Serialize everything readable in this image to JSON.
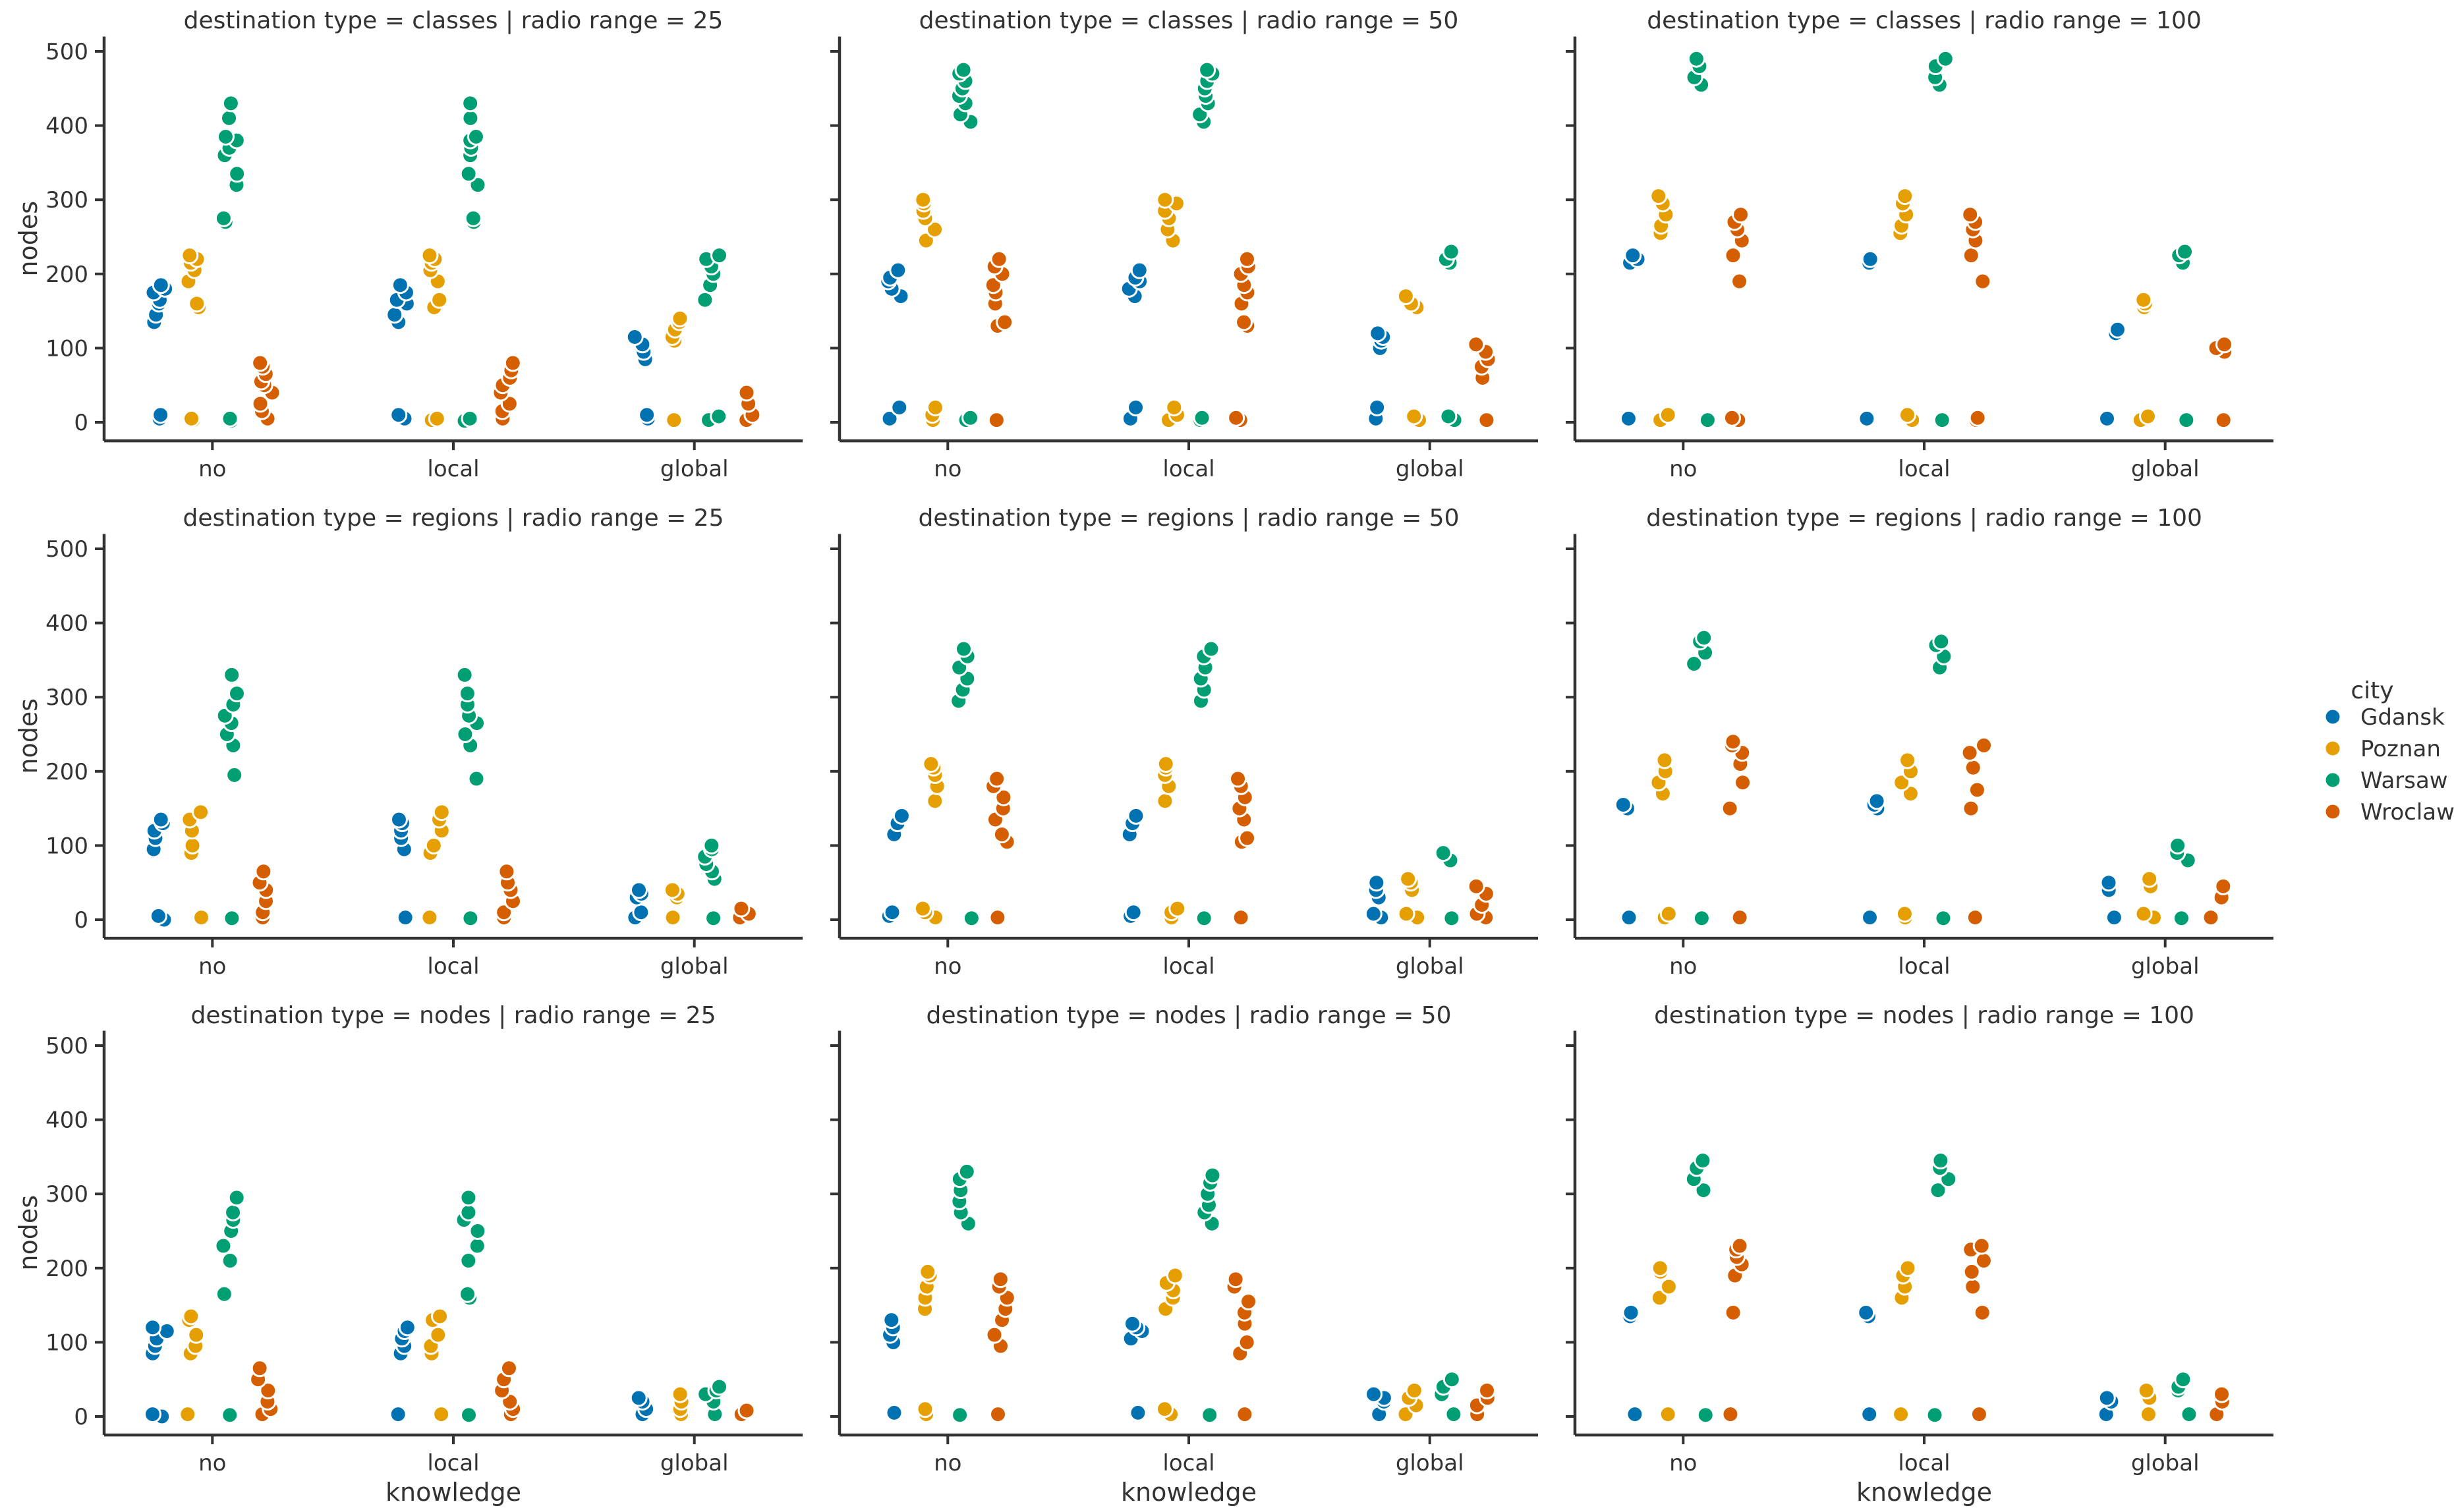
{
  "chart_data": {
    "type": "scatter",
    "subtype": "faceted strip plot (3 rows x 3 cols)",
    "xlabel": "knowledge",
    "ylabel": "nodes",
    "ylim": [
      -25,
      520
    ],
    "yticks": [
      0,
      100,
      200,
      300,
      400,
      500
    ],
    "xcategories": [
      "no",
      "local",
      "global"
    ],
    "legend": {
      "title": "city",
      "position": "right",
      "entries": [
        {
          "name": "Gdansk",
          "color": "#0072B2"
        },
        {
          "name": "Poznan",
          "color": "#E69F00"
        },
        {
          "name": "Warsaw",
          "color": "#009E73"
        },
        {
          "name": "Wroclaw",
          "color": "#D55E00"
        }
      ]
    },
    "facets": [
      {
        "title": "destination type = classes | radio range = 25",
        "row": 0,
        "col": 0,
        "data": {
          "no": {
            "Gdansk": [
              5,
              10,
              135,
              145,
              160,
              165,
              175,
              180,
              185
            ],
            "Poznan": [
              3,
              5,
              155,
              160,
              190,
              205,
              215,
              220,
              225
            ],
            "Warsaw": [
              2,
              5,
              270,
              275,
              320,
              335,
              360,
              370,
              380,
              385,
              410,
              430
            ],
            "Wroclaw": [
              5,
              15,
              25,
              40,
              50,
              55,
              65,
              75,
              80
            ]
          },
          "local": {
            "Gdansk": [
              5,
              10,
              135,
              145,
              160,
              165,
              175,
              185
            ],
            "Poznan": [
              3,
              5,
              155,
              165,
              190,
              205,
              215,
              220,
              225
            ],
            "Warsaw": [
              2,
              5,
              270,
              275,
              320,
              335,
              360,
              370,
              380,
              385,
              410,
              430
            ],
            "Wroclaw": [
              5,
              15,
              25,
              40,
              50,
              60,
              70,
              80
            ]
          },
          "global": {
            "Gdansk": [
              5,
              10,
              85,
              95,
              105,
              115
            ],
            "Poznan": [
              3,
              110,
              115,
              125,
              135,
              140
            ],
            "Warsaw": [
              3,
              8,
              165,
              185,
              200,
              210,
              220,
              225
            ],
            "Wroclaw": [
              3,
              10,
              25,
              40
            ]
          }
        }
      },
      {
        "title": "destination type = classes | radio range = 50",
        "row": 0,
        "col": 1,
        "data": {
          "no": {
            "Gdansk": [
              5,
              20,
              170,
              180,
              190,
              195,
              205
            ],
            "Poznan": [
              3,
              10,
              20,
              245,
              260,
              275,
              285,
              295,
              300
            ],
            "Warsaw": [
              3,
              6,
              405,
              415,
              430,
              440,
              450,
              460,
              470,
              475
            ],
            "Wroclaw": [
              3,
              130,
              135,
              160,
              175,
              185,
              200,
              210,
              220
            ]
          },
          "local": {
            "Gdansk": [
              5,
              20,
              170,
              180,
              190,
              195,
              205
            ],
            "Poznan": [
              3,
              10,
              20,
              245,
              260,
              275,
              285,
              295,
              300
            ],
            "Warsaw": [
              3,
              6,
              405,
              415,
              430,
              440,
              450,
              460,
              470,
              475
            ],
            "Wroclaw": [
              3,
              6,
              130,
              135,
              160,
              175,
              185,
              200,
              210,
              220
            ]
          },
          "global": {
            "Gdansk": [
              5,
              20,
              100,
              110,
              115,
              120
            ],
            "Poznan": [
              3,
              8,
              155,
              160,
              170
            ],
            "Warsaw": [
              3,
              8,
              215,
              220,
              230
            ],
            "Wroclaw": [
              3,
              60,
              75,
              85,
              95,
              105
            ]
          }
        }
      },
      {
        "title": "destination type = classes | radio range = 100",
        "row": 0,
        "col": 2,
        "data": {
          "no": {
            "Gdansk": [
              5,
              215,
              220,
              225
            ],
            "Poznan": [
              3,
              10,
              255,
              265,
              280,
              295,
              305
            ],
            "Warsaw": [
              3,
              455,
              465,
              480,
              490
            ],
            "Wroclaw": [
              3,
              6,
              190,
              225,
              245,
              260,
              270,
              280
            ]
          },
          "local": {
            "Gdansk": [
              5,
              215,
              220
            ],
            "Poznan": [
              3,
              10,
              255,
              265,
              280,
              295,
              305
            ],
            "Warsaw": [
              3,
              455,
              465,
              480,
              490
            ],
            "Wroclaw": [
              3,
              6,
              190,
              225,
              245,
              260,
              270,
              280
            ]
          },
          "global": {
            "Gdansk": [
              5,
              120,
              125
            ],
            "Poznan": [
              3,
              8,
              155,
              160,
              165
            ],
            "Warsaw": [
              3,
              215,
              225,
              230
            ],
            "Wroclaw": [
              3,
              95,
              100,
              105
            ]
          }
        }
      },
      {
        "title": "destination type = regions | radio range = 25",
        "row": 1,
        "col": 0,
        "data": {
          "no": {
            "Gdansk": [
              0,
              5,
              95,
              110,
              120,
              130,
              135
            ],
            "Poznan": [
              3,
              90,
              100,
              120,
              135,
              145
            ],
            "Warsaw": [
              2,
              195,
              235,
              250,
              265,
              275,
              290,
              305,
              330
            ],
            "Wroclaw": [
              3,
              10,
              25,
              40,
              50,
              65
            ]
          },
          "local": {
            "Gdansk": [
              3,
              95,
              110,
              120,
              130,
              135
            ],
            "Poznan": [
              3,
              90,
              100,
              120,
              135,
              145
            ],
            "Warsaw": [
              2,
              190,
              235,
              250,
              265,
              275,
              290,
              305,
              330
            ],
            "Wroclaw": [
              3,
              10,
              25,
              40,
              50,
              65
            ]
          },
          "global": {
            "Gdansk": [
              3,
              10,
              30,
              35,
              40
            ],
            "Poznan": [
              3,
              30,
              35,
              40
            ],
            "Warsaw": [
              2,
              55,
              65,
              75,
              85,
              95,
              100
            ],
            "Wroclaw": [
              3,
              8,
              15
            ]
          }
        }
      },
      {
        "title": "destination type = regions | radio range = 50",
        "row": 1,
        "col": 1,
        "data": {
          "no": {
            "Gdansk": [
              5,
              10,
              115,
              130,
              140
            ],
            "Poznan": [
              3,
              10,
              15,
              160,
              180,
              195,
              205,
              210
            ],
            "Warsaw": [
              2,
              295,
              310,
              325,
              340,
              355,
              365
            ],
            "Wroclaw": [
              3,
              105,
              115,
              135,
              150,
              165,
              180,
              190
            ]
          },
          "local": {
            "Gdansk": [
              5,
              10,
              115,
              130,
              140
            ],
            "Poznan": [
              3,
              10,
              15,
              160,
              180,
              195,
              205,
              210
            ],
            "Warsaw": [
              2,
              295,
              310,
              325,
              340,
              355,
              365
            ],
            "Wroclaw": [
              3,
              105,
              110,
              135,
              150,
              165,
              180,
              190
            ]
          },
          "global": {
            "Gdansk": [
              3,
              8,
              30,
              40,
              50
            ],
            "Poznan": [
              3,
              8,
              40,
              50,
              55
            ],
            "Warsaw": [
              2,
              80,
              90
            ],
            "Wroclaw": [
              3,
              8,
              20,
              35,
              45
            ]
          }
        }
      },
      {
        "title": "destination type = regions | radio range = 100",
        "row": 1,
        "col": 2,
        "data": {
          "no": {
            "Gdansk": [
              3,
              150,
              155
            ],
            "Poznan": [
              3,
              8,
              170,
              185,
              200,
              215
            ],
            "Warsaw": [
              2,
              345,
              360,
              375,
              380
            ],
            "Wroclaw": [
              3,
              150,
              185,
              210,
              225,
              235,
              240
            ]
          },
          "local": {
            "Gdansk": [
              3,
              150,
              155,
              160
            ],
            "Poznan": [
              3,
              8,
              170,
              185,
              200,
              215
            ],
            "Warsaw": [
              2,
              340,
              355,
              370,
              375
            ],
            "Wroclaw": [
              3,
              150,
              175,
              205,
              225,
              235
            ]
          },
          "global": {
            "Gdansk": [
              3,
              40,
              50
            ],
            "Poznan": [
              3,
              8,
              45,
              55
            ],
            "Warsaw": [
              2,
              80,
              90,
              100
            ],
            "Wroclaw": [
              3,
              30,
              45
            ]
          }
        }
      },
      {
        "title": "destination type = nodes | radio range = 25",
        "row": 2,
        "col": 0,
        "data": {
          "no": {
            "Gdansk": [
              0,
              3,
              85,
              95,
              105,
              115,
              120
            ],
            "Poznan": [
              3,
              85,
              95,
              110,
              130,
              135
            ],
            "Warsaw": [
              2,
              165,
              210,
              230,
              250,
              265,
              275,
              295
            ],
            "Wroclaw": [
              3,
              10,
              20,
              35,
              50,
              65
            ]
          },
          "local": {
            "Gdansk": [
              3,
              85,
              95,
              105,
              115,
              120
            ],
            "Poznan": [
              3,
              85,
              95,
              110,
              130,
              135
            ],
            "Warsaw": [
              2,
              160,
              165,
              210,
              230,
              250,
              265,
              275,
              295
            ],
            "Wroclaw": [
              3,
              10,
              20,
              35,
              50,
              65
            ]
          },
          "global": {
            "Gdansk": [
              3,
              10,
              20,
              25
            ],
            "Poznan": [
              3,
              10,
              20,
              30
            ],
            "Warsaw": [
              3,
              20,
              30,
              35,
              40
            ],
            "Wroclaw": [
              3,
              8
            ]
          }
        }
      },
      {
        "title": "destination type = nodes | radio range = 50",
        "row": 2,
        "col": 1,
        "data": {
          "no": {
            "Gdansk": [
              5,
              100,
              110,
              120,
              130
            ],
            "Poznan": [
              3,
              10,
              145,
              160,
              175,
              190,
              195
            ],
            "Warsaw": [
              2,
              260,
              275,
              290,
              305,
              320,
              330
            ],
            "Wroclaw": [
              3,
              95,
              110,
              130,
              145,
              160,
              175,
              185
            ]
          },
          "local": {
            "Gdansk": [
              5,
              105,
              115,
              120,
              125
            ],
            "Poznan": [
              3,
              10,
              145,
              160,
              170,
              180,
              190
            ],
            "Warsaw": [
              2,
              260,
              275,
              285,
              300,
              315,
              325
            ],
            "Wroclaw": [
              3,
              85,
              100,
              125,
              140,
              155,
              175,
              185
            ]
          },
          "global": {
            "Gdansk": [
              3,
              20,
              25,
              30
            ],
            "Poznan": [
              3,
              15,
              25,
              35
            ],
            "Warsaw": [
              3,
              30,
              40,
              50
            ],
            "Wroclaw": [
              3,
              15,
              25,
              35
            ]
          }
        }
      },
      {
        "title": "destination type = nodes | radio range = 100",
        "row": 2,
        "col": 2,
        "data": {
          "no": {
            "Gdansk": [
              3,
              135,
              140
            ],
            "Poznan": [
              3,
              160,
              175,
              195,
              200
            ],
            "Warsaw": [
              2,
              305,
              320,
              335,
              345
            ],
            "Wroclaw": [
              3,
              140,
              190,
              205,
              215,
              225,
              230
            ]
          },
          "local": {
            "Gdansk": [
              3,
              135,
              140
            ],
            "Poznan": [
              3,
              160,
              175,
              190,
              200
            ],
            "Warsaw": [
              2,
              305,
              320,
              335,
              345
            ],
            "Wroclaw": [
              3,
              140,
              175,
              195,
              210,
              225,
              230
            ]
          },
          "global": {
            "Gdansk": [
              3,
              20,
              25
            ],
            "Poznan": [
              3,
              25,
              35
            ],
            "Warsaw": [
              3,
              35,
              40,
              50
            ],
            "Wroclaw": [
              3,
              20,
              30
            ]
          }
        }
      }
    ]
  }
}
